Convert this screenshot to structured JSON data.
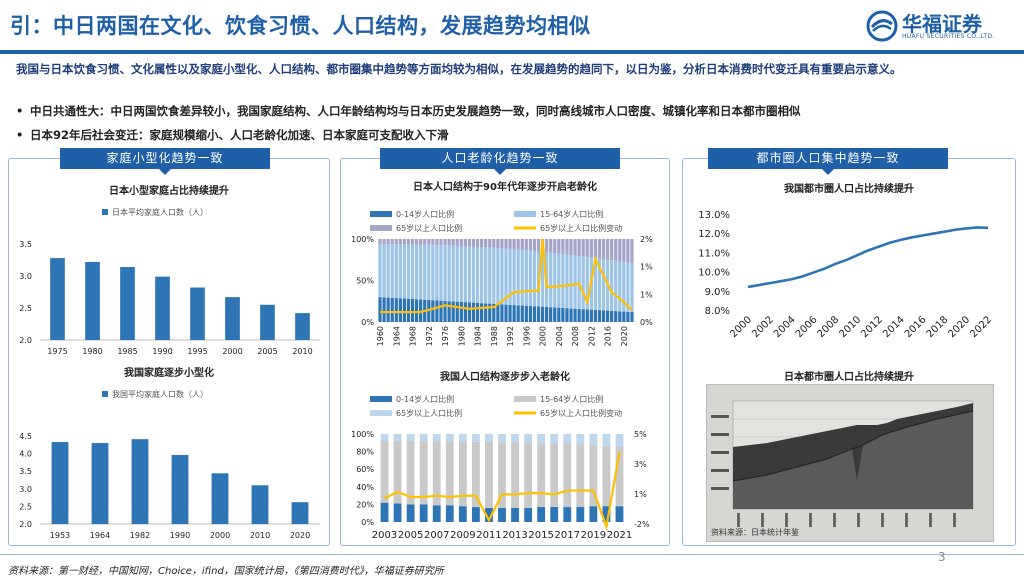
{
  "title": "引：中日两国在文化、饮食习惯、人口结构，发展趋势均相似",
  "logo": {
    "name": "华福证券",
    "sub": "HUAFU SECURITIES CO.,LTD."
  },
  "intro": "我国与日本饮食习惯、文化属性以及家庭小型化、人口结构、都市圈集中趋势等方面均较为相似，在发展趋势的趋同下，以日为鉴，分析日本消费时代变迁具有重要启示意义。",
  "bullets": [
    "中日共通性大：中日两国饮食差异较小，我国家庭结构、人口年龄结构均与日本历史发展趋势一致，同时高线城市人口密度、城镇化率和日本都市圈相似",
    "日本92年后社会变迁：家庭规模缩小、人口老龄化加速、日本家庭可支配收入下滑"
  ],
  "panels": {
    "left": "家庭小型化趋势一致",
    "middle": "人口老龄化趋势一致",
    "right": "都市圈人口集中趋势一致"
  },
  "photo": {
    "title": "日本都市圈人口占比持续提升",
    "caption": "资料来源：日本统计年鉴"
  },
  "footer": "资料来源：第一财经，中国知网，Choice，ifind，国家统计局，《第四消费时代》，华福证券研究所",
  "page_number": "3",
  "colors": {
    "primary": "#1f5fa8",
    "light_blue": "#9dc3e6",
    "grey": "#bfbfbf",
    "yellow": "#ffc000",
    "mid_blue": "#2e75b6"
  },
  "chart_data": [
    {
      "type": "bar",
      "title": "日本小型家庭占比持续提升",
      "legend": "日本平均家庭人口数（人）",
      "categories": [
        "1975",
        "1980",
        "1985",
        "1990",
        "1995",
        "2000",
        "2005",
        "2010"
      ],
      "values": [
        3.28,
        3.22,
        3.14,
        2.99,
        2.82,
        2.67,
        2.55,
        2.42
      ],
      "ylim": [
        2.0,
        3.5
      ],
      "yticks": [
        "3.5",
        "3.0",
        "2.5",
        "2.0"
      ]
    },
    {
      "type": "bar",
      "title": "我国家庭逐步小型化",
      "legend": "我国平均家庭人口数（人）",
      "categories": [
        "1953",
        "1964",
        "1982",
        "1990",
        "2000",
        "2010",
        "2020"
      ],
      "values": [
        4.33,
        4.3,
        4.41,
        3.96,
        3.44,
        3.1,
        2.62
      ],
      "ylim": [
        2.0,
        4.5
      ],
      "yticks": [
        "4.5",
        "4.0",
        "3.5",
        "3.0",
        "2.5",
        "2.0"
      ]
    },
    {
      "type": "stacked-bar+line",
      "title": "日本人口结构于90年代年逐步开启老龄化",
      "legend": [
        "0-14岁人口比例",
        "15-64岁人口比例",
        "65岁以上人口比例",
        "65岁以上人口比例变动"
      ],
      "x_start": 1960,
      "x_end": 2022,
      "xticks": [
        "1960",
        "1964",
        "1968",
        "1972",
        "1976",
        "1980",
        "1984",
        "1988",
        "1992",
        "1996",
        "2000",
        "2004",
        "2008",
        "2012",
        "2016",
        "2020"
      ],
      "series": [
        {
          "name": "0-14岁人口比例",
          "start": 0.3,
          "end": 0.12
        },
        {
          "name": "15-64岁人口比例",
          "start": 0.64,
          "end": 0.59
        },
        {
          "name": "65岁以上人口比例",
          "start": 0.06,
          "end": 0.29
        }
      ],
      "line_points": [
        [
          1960,
          0.3
        ],
        [
          1970,
          0.3
        ],
        [
          1976,
          0.5
        ],
        [
          1982,
          0.4
        ],
        [
          1988,
          0.45
        ],
        [
          1993,
          0.9
        ],
        [
          1999,
          0.95
        ],
        [
          2000,
          2.5
        ],
        [
          2001,
          1.05
        ],
        [
          2006,
          1.1
        ],
        [
          2009,
          1.15
        ],
        [
          2011,
          0.6
        ],
        [
          2013,
          1.9
        ],
        [
          2015,
          1.4
        ],
        [
          2017,
          0.9
        ],
        [
          2020,
          0.6
        ],
        [
          2022,
          0.35
        ]
      ],
      "ylim_left": [
        "0%",
        "50%",
        "100%"
      ],
      "ylim_right": [
        "0%",
        "1%",
        "1%",
        "2%"
      ]
    },
    {
      "type": "stacked-bar+line",
      "title": "我国人口结构逐步步入老龄化",
      "legend": [
        "0-14岁人口比例",
        "15-64岁人口比例",
        "65岁以上人口比例",
        "65岁以上人口比例变动"
      ],
      "xticks": [
        "2003",
        "2005",
        "2007",
        "2009",
        "2011",
        "2013",
        "2015",
        "2017",
        "2019",
        "2021"
      ],
      "years": [
        2003,
        2004,
        2005,
        2006,
        2007,
        2008,
        2009,
        2010,
        2011,
        2012,
        2013,
        2014,
        2015,
        2016,
        2017,
        2018,
        2019,
        2020,
        2021
      ],
      "young": [
        0.22,
        0.21,
        0.2,
        0.2,
        0.19,
        0.19,
        0.18,
        0.17,
        0.16,
        0.16,
        0.16,
        0.16,
        0.17,
        0.17,
        0.17,
        0.17,
        0.18,
        0.18,
        0.18
      ],
      "old": [
        0.075,
        0.076,
        0.077,
        0.079,
        0.081,
        0.083,
        0.085,
        0.089,
        0.091,
        0.094,
        0.097,
        0.101,
        0.105,
        0.108,
        0.114,
        0.119,
        0.126,
        0.135,
        0.142
      ],
      "change": [
        0.0,
        0.5,
        0.1,
        0.1,
        0.2,
        0.1,
        0.2,
        0.2,
        -1.7,
        0.3,
        0.3,
        0.4,
        0.4,
        0.3,
        0.6,
        0.6,
        0.6,
        -2.2,
        3.6
      ],
      "ylim_left": [
        "0%",
        "20%",
        "40%",
        "60%",
        "80%",
        "100%"
      ],
      "ylim_right": [
        "-2%",
        "1%",
        "3%",
        "5%"
      ]
    },
    {
      "type": "line",
      "title": "我国都市圈人口占比持续提升",
      "x": [
        2000,
        2001,
        2002,
        2003,
        2004,
        2005,
        2006,
        2007,
        2008,
        2009,
        2010,
        2011,
        2012,
        2013,
        2014,
        2015,
        2016,
        2017,
        2018,
        2019,
        2020,
        2021,
        2022
      ],
      "values": [
        9.2,
        9.3,
        9.4,
        9.5,
        9.6,
        9.75,
        9.95,
        10.15,
        10.4,
        10.6,
        10.85,
        11.1,
        11.3,
        11.5,
        11.65,
        11.78,
        11.88,
        11.98,
        12.08,
        12.18,
        12.25,
        12.3,
        12.28
      ],
      "xticks": [
        "2000",
        "2002",
        "2004",
        "2006",
        "2008",
        "2010",
        "2012",
        "2014",
        "2016",
        "2018",
        "2020",
        "2022"
      ],
      "yticks": [
        "13.0%",
        "12.0%",
        "11.0%",
        "10.0%",
        "9.0%",
        "8.0%"
      ],
      "ylim": [
        8.0,
        13.0
      ]
    }
  ]
}
